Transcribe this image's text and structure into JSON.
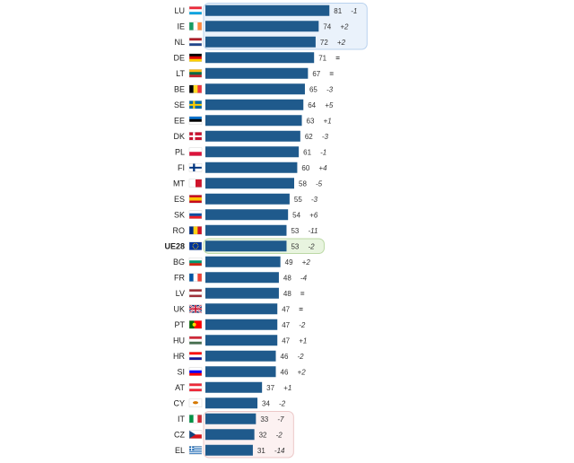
{
  "chart_data": {
    "type": "bar",
    "orientation": "horizontal",
    "title": "",
    "xlabel": "",
    "ylabel": "",
    "xlim": [
      0,
      81
    ],
    "grid": false,
    "legend": "none",
    "bar_color": "#1f5a8c",
    "categories": [
      "LU",
      "IE",
      "NL",
      "DE",
      "LT",
      "BE",
      "SE",
      "EE",
      "DK",
      "PL",
      "FI",
      "MT",
      "ES",
      "SK",
      "RO",
      "UE28",
      "BG",
      "FR",
      "LV",
      "UK",
      "PT",
      "HU",
      "HR",
      "SI",
      "AT",
      "CY",
      "IT",
      "CZ",
      "EL"
    ],
    "values": [
      81,
      74,
      72,
      71,
      67,
      65,
      64,
      63,
      62,
      61,
      60,
      58,
      55,
      54,
      53,
      53,
      49,
      48,
      48,
      47,
      47,
      47,
      46,
      46,
      37,
      34,
      33,
      32,
      31
    ],
    "changes": [
      "-1",
      "+2",
      "+2",
      "=",
      "=",
      "-3",
      "+5",
      "+1",
      "-3",
      "-1",
      "+4",
      "-5",
      "-3",
      "+6",
      "-11",
      "-2",
      "+2",
      "-4",
      "=",
      "=",
      "-2",
      "+1",
      "-2",
      "+2",
      "+1",
      "-2",
      "-7",
      "-2",
      "-14"
    ],
    "highlight_groups": [
      {
        "name": "top",
        "categories": [
          "LU",
          "IE",
          "NL"
        ],
        "color": "#eaf2fb",
        "border": "#b9d2ee"
      },
      {
        "name": "average",
        "categories": [
          "UE28"
        ],
        "color": "#e8f4df",
        "border": "#bcd9a6"
      },
      {
        "name": "bottom",
        "categories": [
          "IT",
          "CZ",
          "EL"
        ],
        "color": "#fcf1f1",
        "border": "#ecc8c8"
      }
    ],
    "flags": {
      "LU": {
        "type": "h",
        "colors": [
          "#ed2939",
          "#ffffff",
          "#00a1de"
        ]
      },
      "IE": {
        "type": "v",
        "colors": [
          "#169b62",
          "#ffffff",
          "#ff883e"
        ]
      },
      "NL": {
        "type": "h",
        "colors": [
          "#ae1c28",
          "#ffffff",
          "#21468b"
        ]
      },
      "DE": {
        "type": "h",
        "colors": [
          "#000000",
          "#dd0000",
          "#ffce00"
        ]
      },
      "LT": {
        "type": "h",
        "colors": [
          "#fdb913",
          "#006a44",
          "#c1272d"
        ]
      },
      "BE": {
        "type": "v",
        "colors": [
          "#000000",
          "#fdda24",
          "#ef3340"
        ]
      },
      "SE": {
        "type": "nordic",
        "colors": [
          "#006aa7",
          "#fecc00"
        ]
      },
      "EE": {
        "type": "h",
        "colors": [
          "#0072ce",
          "#000000",
          "#ffffff"
        ]
      },
      "DK": {
        "type": "nordic",
        "colors": [
          "#c8102e",
          "#ffffff"
        ]
      },
      "PL": {
        "type": "h",
        "colors": [
          "#ffffff",
          "#dc143c"
        ]
      },
      "FI": {
        "type": "nordic",
        "colors": [
          "#ffffff",
          "#003580"
        ]
      },
      "MT": {
        "type": "v",
        "colors": [
          "#ffffff",
          "#cf142b"
        ]
      },
      "ES": {
        "type": "hw",
        "colors": [
          "#c60b1e",
          "#ffc400",
          "#c60b1e"
        ]
      },
      "SK": {
        "type": "h",
        "colors": [
          "#ffffff",
          "#0b4ea2",
          "#ee1c25"
        ]
      },
      "RO": {
        "type": "v",
        "colors": [
          "#002b7f",
          "#fcd116",
          "#ce1126"
        ]
      },
      "UE28": {
        "type": "eu",
        "colors": [
          "#003399",
          "#ffcc00"
        ]
      },
      "BG": {
        "type": "h",
        "colors": [
          "#ffffff",
          "#00966e",
          "#d62612"
        ]
      },
      "FR": {
        "type": "v",
        "colors": [
          "#0055a4",
          "#ffffff",
          "#ef4135"
        ]
      },
      "LV": {
        "type": "hw",
        "colors": [
          "#9e3039",
          "#ffffff",
          "#9e3039"
        ]
      },
      "UK": {
        "type": "uk",
        "colors": [
          "#012169",
          "#ffffff",
          "#c8102e"
        ]
      },
      "PT": {
        "type": "pt",
        "colors": [
          "#006600",
          "#ff0000"
        ]
      },
      "HU": {
        "type": "h",
        "colors": [
          "#ce2939",
          "#ffffff",
          "#477050"
        ]
      },
      "HR": {
        "type": "h",
        "colors": [
          "#ff0000",
          "#ffffff",
          "#171796"
        ]
      },
      "SI": {
        "type": "h",
        "colors": [
          "#ffffff",
          "#0000ff",
          "#ff0000"
        ]
      },
      "AT": {
        "type": "h",
        "colors": [
          "#ed2939",
          "#ffffff",
          "#ed2939"
        ]
      },
      "CY": {
        "type": "cy",
        "colors": [
          "#ffffff",
          "#d57800"
        ]
      },
      "IT": {
        "type": "v",
        "colors": [
          "#009246",
          "#ffffff",
          "#ce2b37"
        ]
      },
      "CZ": {
        "type": "cz",
        "colors": [
          "#ffffff",
          "#d7141a",
          "#11457e"
        ]
      },
      "EL": {
        "type": "gr",
        "colors": [
          "#0d5eaf",
          "#ffffff"
        ]
      }
    }
  }
}
